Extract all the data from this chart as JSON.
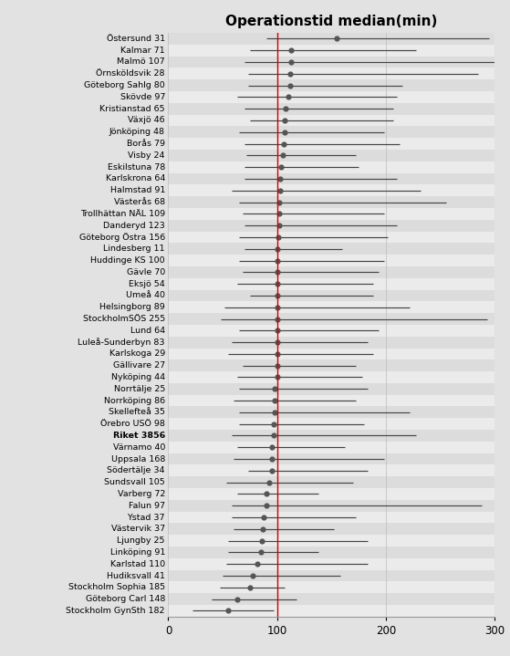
{
  "title": "Operationstid median(min)",
  "vline_x": 100,
  "vline_color": "#cc0000",
  "bg_even": "#dcdcdc",
  "bg_odd": "#ebebeb",
  "dot_color": "#555555",
  "line_color": "#444444",
  "xlim": [
    0,
    300
  ],
  "xticks": [
    0,
    100,
    200,
    300
  ],
  "clinics": [
    {
      "label": "Östersund 31",
      "median": 155,
      "low": 90,
      "high": 295
    },
    {
      "label": "Kalmar 71",
      "median": 113,
      "low": 75,
      "high": 228
    },
    {
      "label": "Malmö 107",
      "median": 113,
      "low": 70,
      "high": 300
    },
    {
      "label": "Örnsköldsvik 28",
      "median": 112,
      "low": 73,
      "high": 285
    },
    {
      "label": "Göteborg Sahlg 80",
      "median": 112,
      "low": 73,
      "high": 215
    },
    {
      "label": "Skövde 97",
      "median": 110,
      "low": 63,
      "high": 210
    },
    {
      "label": "Kristianstad 65",
      "median": 108,
      "low": 70,
      "high": 207
    },
    {
      "label": "Växjö 46",
      "median": 107,
      "low": 75,
      "high": 207
    },
    {
      "label": "Jönköping 48",
      "median": 107,
      "low": 65,
      "high": 198
    },
    {
      "label": "Borås 79",
      "median": 106,
      "low": 70,
      "high": 213
    },
    {
      "label": "Visby 24",
      "median": 105,
      "low": 72,
      "high": 172
    },
    {
      "label": "Eskilstuna 78",
      "median": 104,
      "low": 70,
      "high": 175
    },
    {
      "label": "Karlskrona 64",
      "median": 103,
      "low": 70,
      "high": 210
    },
    {
      "label": "Halmstad 91",
      "median": 103,
      "low": 58,
      "high": 232
    },
    {
      "label": "Västerås 68",
      "median": 102,
      "low": 65,
      "high": 255
    },
    {
      "label": "Trollhättan NÄL 109",
      "median": 102,
      "low": 68,
      "high": 198
    },
    {
      "label": "Danderyd 123",
      "median": 102,
      "low": 70,
      "high": 210
    },
    {
      "label": "Göteborg Östra 156",
      "median": 101,
      "low": 65,
      "high": 202
    },
    {
      "label": "Lindesberg 11",
      "median": 100,
      "low": 70,
      "high": 160
    },
    {
      "label": "Huddinge KS 100",
      "median": 100,
      "low": 65,
      "high": 198
    },
    {
      "label": "Gävle 70",
      "median": 100,
      "low": 68,
      "high": 193
    },
    {
      "label": "Eksjö 54",
      "median": 100,
      "low": 63,
      "high": 188
    },
    {
      "label": "Umeå 40",
      "median": 100,
      "low": 75,
      "high": 188
    },
    {
      "label": "Helsingborg 89",
      "median": 100,
      "low": 52,
      "high": 222
    },
    {
      "label": "StockholmSÖS 255",
      "median": 100,
      "low": 48,
      "high": 293
    },
    {
      "label": "Lund 64",
      "median": 100,
      "low": 65,
      "high": 193
    },
    {
      "label": "Luleå-Sunderbyn 83",
      "median": 100,
      "low": 58,
      "high": 183
    },
    {
      "label": "Karlskoga 29",
      "median": 100,
      "low": 55,
      "high": 188
    },
    {
      "label": "Gällivare 27",
      "median": 100,
      "low": 68,
      "high": 172
    },
    {
      "label": "Nyköping 44",
      "median": 100,
      "low": 63,
      "high": 178
    },
    {
      "label": "Norrtälje 25",
      "median": 98,
      "low": 65,
      "high": 183
    },
    {
      "label": "Norrköping 86",
      "median": 98,
      "low": 60,
      "high": 172
    },
    {
      "label": "Skellefteå 35",
      "median": 98,
      "low": 65,
      "high": 222
    },
    {
      "label": "Örebro USÖ 98",
      "median": 97,
      "low": 65,
      "high": 180
    },
    {
      "label": "Riket 3856",
      "median": 97,
      "low": 58,
      "high": 228
    },
    {
      "label": "Värnamo 40",
      "median": 95,
      "low": 63,
      "high": 162
    },
    {
      "label": "Uppsala 168",
      "median": 95,
      "low": 60,
      "high": 198
    },
    {
      "label": "Södertälje 34",
      "median": 95,
      "low": 73,
      "high": 183
    },
    {
      "label": "Sundsvall 105",
      "median": 93,
      "low": 53,
      "high": 170
    },
    {
      "label": "Varberg 72",
      "median": 90,
      "low": 63,
      "high": 138
    },
    {
      "label": "Falun 97",
      "median": 90,
      "low": 58,
      "high": 288
    },
    {
      "label": "Ystad 37",
      "median": 88,
      "low": 58,
      "high": 172
    },
    {
      "label": "Västervik 37",
      "median": 87,
      "low": 60,
      "high": 152
    },
    {
      "label": "Ljungby 25",
      "median": 86,
      "low": 55,
      "high": 183
    },
    {
      "label": "Linköping 91",
      "median": 85,
      "low": 55,
      "high": 138
    },
    {
      "label": "Karlstad 110",
      "median": 82,
      "low": 53,
      "high": 183
    },
    {
      "label": "Hudiksvall 41",
      "median": 78,
      "low": 50,
      "high": 158
    },
    {
      "label": "Stockholm Sophia 185",
      "median": 75,
      "low": 47,
      "high": 107
    },
    {
      "label": "Göteborg Carl 148",
      "median": 63,
      "low": 40,
      "high": 118
    },
    {
      "label": "Stockholm GynSth 182",
      "median": 55,
      "low": 22,
      "high": 97
    }
  ],
  "riket_label": "Riket 3856",
  "title_fontsize": 11,
  "label_fontsize": 6.8,
  "tick_fontsize": 8.5
}
